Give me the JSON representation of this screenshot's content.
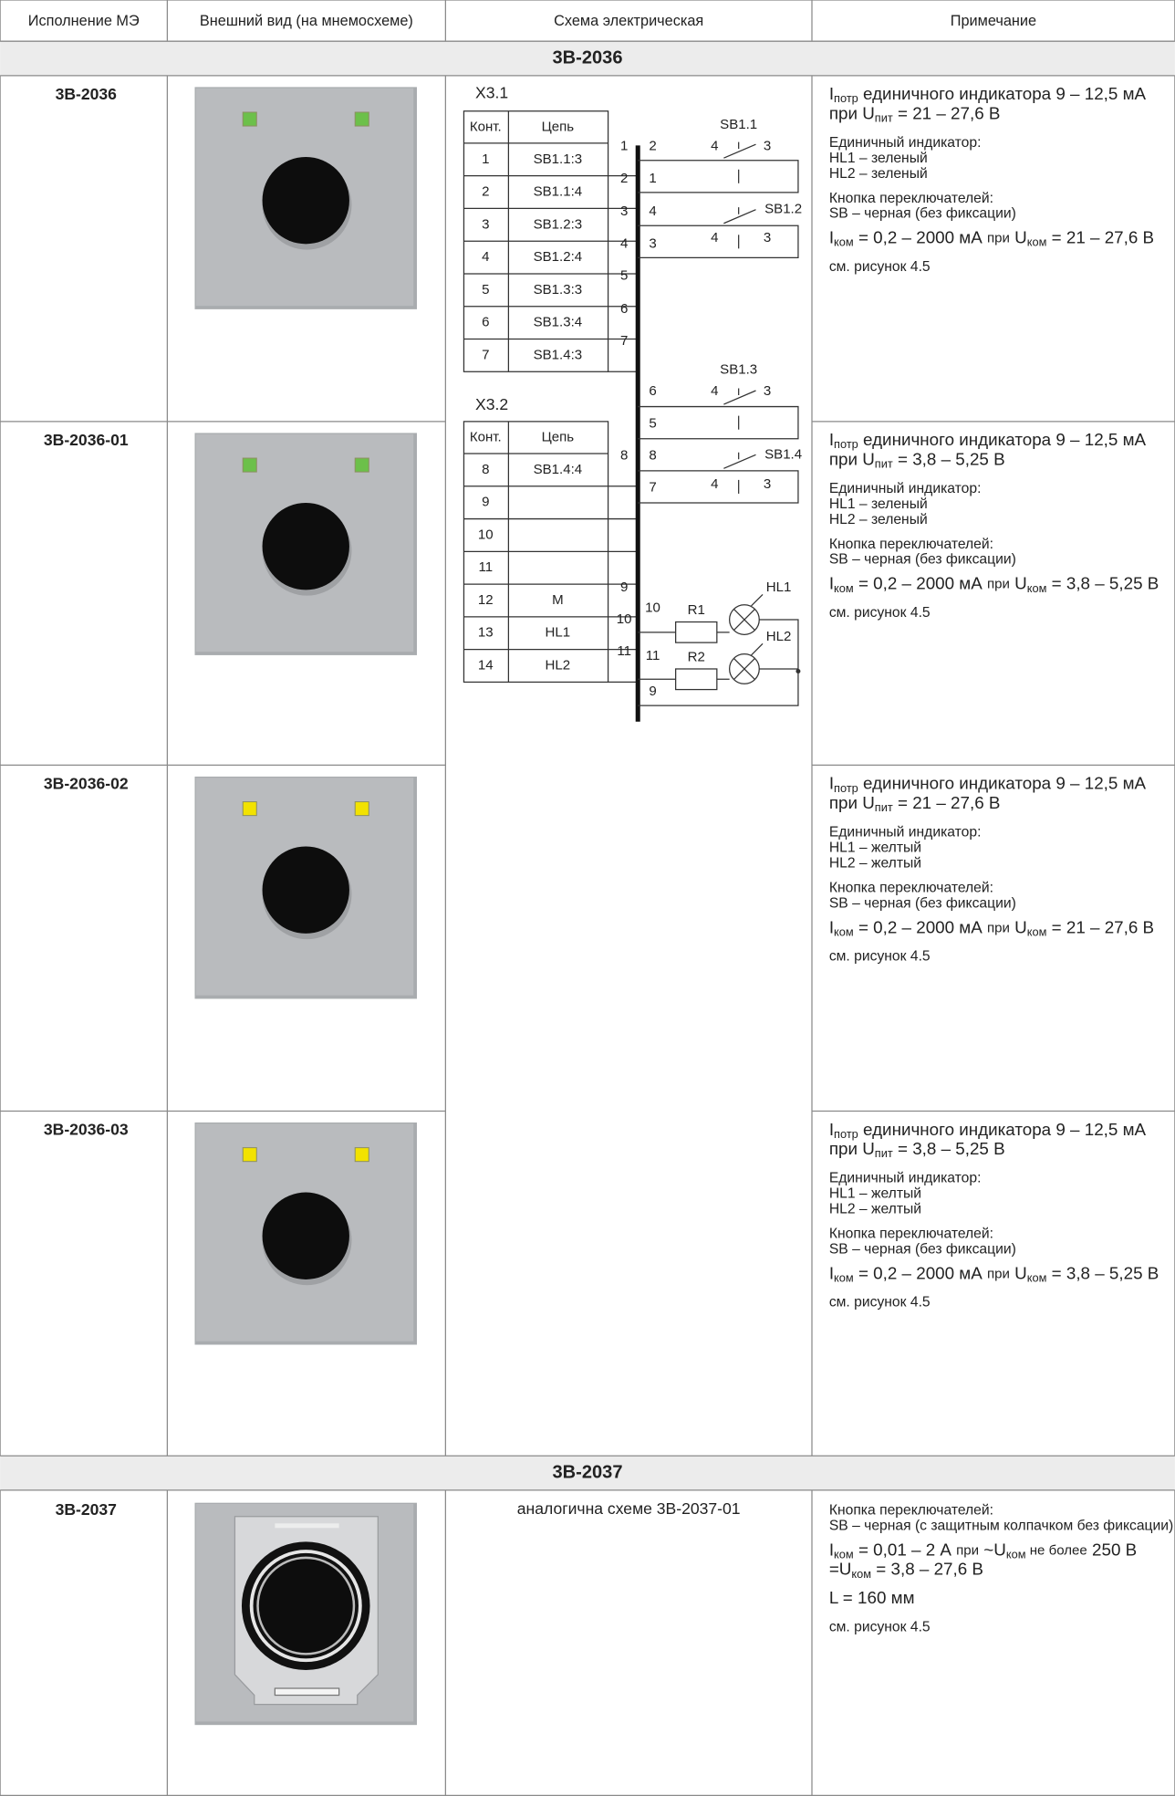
{
  "table": {
    "columns": [
      "Исполнение МЭ",
      "Внешний вид (на мнемосхеме)",
      "Схема электрическая",
      "Примечание"
    ],
    "sections": [
      {
        "title": "3В-2036",
        "rows": [
          {
            "id": "3В-2036",
            "led_color": "#6cc04a",
            "notes": [
              [
                [
                  "I",
                  {
                    "sub": "потр"
                  },
                  " единичного индикатора 9 – 12,5 мА"
                ],
                [
                  "при U",
                  {
                    "sub": "пит"
                  },
                  " = 21 – 27,6 В"
                ]
              ],
              [
                [
                  "Единичный индикатор:"
                ],
                [
                  "HL1 – зеленый"
                ],
                [
                  "HL2 – зеленый"
                ]
              ],
              [
                [
                  "Кнопка переключателей:"
                ],
                [
                  "SB – черная (без фиксации)"
                ]
              ],
              [
                [
                  "I",
                  {
                    "sub": "ком"
                  },
                  " = 0,2 – 2000 мА ",
                  {
                    "small": "при"
                  },
                  " U",
                  {
                    "sub": "ком"
                  },
                  " = 21 – 27,6 В"
                ]
              ],
              [
                [
                  "см. рисунок 4.5"
                ]
              ]
            ]
          },
          {
            "id": "3В-2036-01",
            "led_color": "#6cc04a",
            "notes": [
              [
                [
                  "I",
                  {
                    "sub": "потр"
                  },
                  " единичного индикатора 9 – 12,5 мА"
                ],
                [
                  "при U",
                  {
                    "sub": "пит"
                  },
                  " = 3,8 – 5,25 В"
                ]
              ],
              [
                [
                  "Единичный индикатор:"
                ],
                [
                  "HL1 – зеленый"
                ],
                [
                  "HL2 – зеленый"
                ]
              ],
              [
                [
                  "Кнопка переключателей:"
                ],
                [
                  "SB – черная (без фиксации)"
                ]
              ],
              [
                [
                  "I",
                  {
                    "sub": "ком"
                  },
                  " = 0,2 – 2000 мА ",
                  {
                    "small": "при"
                  },
                  " U",
                  {
                    "sub": "ком"
                  },
                  " = 3,8 – 5,25 В"
                ]
              ],
              [
                [
                  "см. рисунок 4.5"
                ]
              ]
            ]
          },
          {
            "id": "3В-2036-02",
            "led_color": "#f2e200",
            "notes": [
              [
                [
                  "I",
                  {
                    "sub": "потр"
                  },
                  " единичного индикатора 9 – 12,5 мА"
                ],
                [
                  "при U",
                  {
                    "sub": "пит"
                  },
                  " = 21 – 27,6 В"
                ]
              ],
              [
                [
                  "Единичный индикатор:"
                ],
                [
                  "HL1 – желтый"
                ],
                [
                  "HL2 – желтый"
                ]
              ],
              [
                [
                  "Кнопка переключателей:"
                ],
                [
                  "SB – черная (без фиксации)"
                ]
              ],
              [
                [
                  "I",
                  {
                    "sub": "ком"
                  },
                  " = 0,2 – 2000 мА ",
                  {
                    "small": "при"
                  },
                  " U",
                  {
                    "sub": "ком"
                  },
                  " = 21 – 27,6 В"
                ]
              ],
              [
                [
                  "см. рисунок 4.5"
                ]
              ]
            ]
          },
          {
            "id": "3В-2036-03",
            "led_color": "#f2e200",
            "notes": [
              [
                [
                  "I",
                  {
                    "sub": "потр"
                  },
                  " единичного индикатора 9 – 12,5 мА"
                ],
                [
                  "при U",
                  {
                    "sub": "пит"
                  },
                  " = 3,8 – 5,25 В"
                ]
              ],
              [
                [
                  "Единичный индикатор:"
                ],
                [
                  "HL1 – желтый"
                ],
                [
                  "HL2 – желтый"
                ]
              ],
              [
                [
                  "Кнопка переключателей:"
                ],
                [
                  "SB – черная (без фиксации)"
                ]
              ],
              [
                [
                  "I",
                  {
                    "sub": "ком"
                  },
                  " = 0,2 – 2000 мА ",
                  {
                    "small": "при"
                  },
                  " U",
                  {
                    "sub": "ком"
                  },
                  " = 3,8 – 5,25 В"
                ]
              ],
              [
                [
                  "см. рисунок 4.5"
                ]
              ]
            ]
          }
        ]
      },
      {
        "title": "3В-2037",
        "rows": [
          {
            "id": "3В-2037",
            "scheme": "аналогична схеме 3В-2037-01",
            "notes": [
              [
                [
                  "Кнопка переключателей:"
                ],
                [
                  "SB – черная (с защитным колпачком без фиксации)"
                ]
              ],
              [
                [
                  "I",
                  {
                    "sub": "ком"
                  },
                  " = 0,01 – 2 А ",
                  {
                    "small": "при"
                  },
                  " ~U",
                  {
                    "sub": "ком"
                  },
                  {
                    "small": " не более"
                  },
                  " 250 В"
                ],
                [
                  "=U",
                  {
                    "sub": "ком"
                  },
                  " = 3,8 – 27,6 В"
                ]
              ],
              [
                [
                  "L = 160 мм"
                ]
              ],
              [
                [
                  "см. рисунок 4.5"
                ]
              ]
            ]
          }
        ]
      }
    ]
  },
  "schematic": {
    "x31": {
      "title": "X3.1",
      "header": [
        "Конт.",
        "Цепь"
      ],
      "rows": [
        [
          "1",
          "SB1.1:3"
        ],
        [
          "2",
          "SB1.1:4"
        ],
        [
          "3",
          "SB1.2:3"
        ],
        [
          "4",
          "SB1.2:4"
        ],
        [
          "5",
          "SB1.3:3"
        ],
        [
          "6",
          "SB1.3:4"
        ],
        [
          "7",
          "SB1.4:3"
        ]
      ]
    },
    "x32": {
      "title": "X3.2",
      "header": [
        "Конт.",
        "Цепь"
      ],
      "rows": [
        [
          "8",
          "SB1.4:4"
        ],
        [
          "9",
          null
        ],
        [
          "10",
          null
        ],
        [
          "11",
          null
        ],
        [
          "12",
          "M"
        ],
        [
          "13",
          "HL1"
        ],
        [
          "14",
          "HL2"
        ]
      ]
    },
    "bus_left": [
      "1",
      "2",
      "3",
      "4",
      "5",
      "6",
      "7",
      "8",
      "9",
      "10",
      "11"
    ],
    "bus_right": [
      "2",
      "1",
      "4",
      "3",
      "6",
      "5",
      "8",
      "7",
      "10",
      "11",
      "9"
    ],
    "switches": [
      "SB1.1",
      "SB1.2",
      "SB1.3",
      "SB1.4"
    ],
    "contacts": [
      [
        "4",
        "3"
      ],
      [
        "4",
        "3"
      ],
      [
        "4",
        "3"
      ],
      [
        "4",
        "3"
      ]
    ],
    "resistors": [
      "R1",
      "R2"
    ],
    "lamps": [
      "HL1",
      "HL2"
    ]
  }
}
